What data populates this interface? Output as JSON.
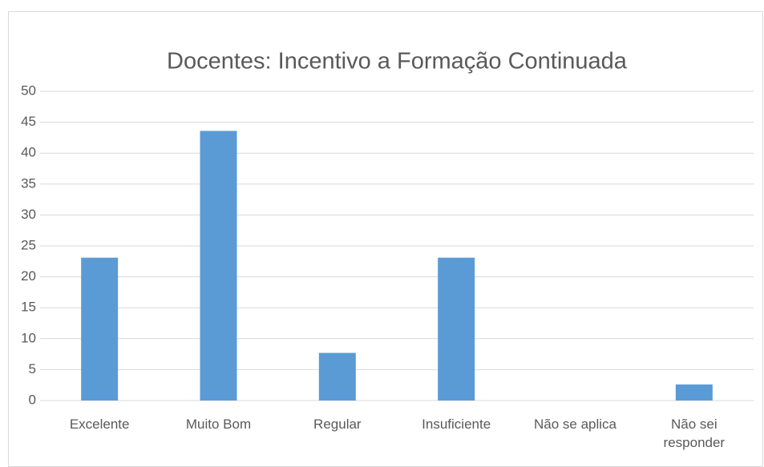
{
  "chart_data": {
    "type": "bar",
    "title": "Docentes: Incentivo a Formação Continuada",
    "categories": [
      "Excelente",
      "Muito Bom",
      "Regular",
      "Insuficiente",
      "Não se aplica",
      "Não sei responder"
    ],
    "values": [
      23.1,
      43.6,
      7.7,
      23.1,
      0,
      2.6
    ],
    "color": "#5b9bd5",
    "ylim": [
      0,
      50
    ],
    "yticks": [
      0,
      5,
      10,
      15,
      20,
      25,
      30,
      35,
      40,
      45,
      50
    ],
    "grid": true
  }
}
